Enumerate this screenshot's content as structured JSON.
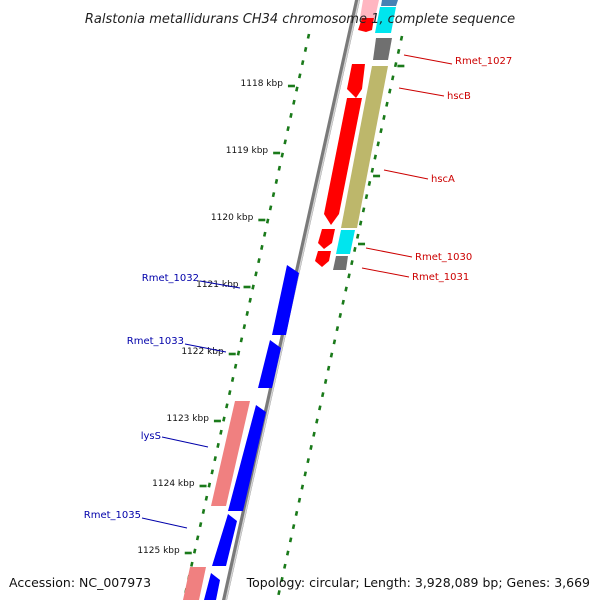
{
  "map": {
    "title": "Ralstonia metallidurans CH34 chromosome 1, complete sequence",
    "accession": "Accession: NC_007973",
    "topology": "Topology: circular; Length: 3,928,089 bp; Genes: 3,669"
  },
  "colors": {
    "backbone": "#7a7a7a",
    "backbone_edge": "#cfcfcf",
    "tick": "#1a7a1a",
    "gene_forward": "#ff0000",
    "gene_reverse": "#0000ff",
    "label_forward": "#cc0000",
    "label_reverse": "#0000aa",
    "cds_khaki": "#bdb76b",
    "cds_cyan": "#00e5ee",
    "cds_gray": "#707070",
    "cds_salmon": "#f08080",
    "cds_steel": "#4682b4",
    "cds_pink": "#ffb6c1"
  },
  "kbp_labels": [
    "1118 kbp",
    "1119 kbp",
    "1120 kbp",
    "1121 kbp",
    "1122 kbp",
    "1123 kbp",
    "1124 kbp",
    "1125 kbp"
  ],
  "genes_forward": [
    {
      "name": "Rmet_1027"
    },
    {
      "name": "hscB"
    },
    {
      "name": "hscA"
    },
    {
      "name": "Rmet_1030"
    },
    {
      "name": "Rmet_1031"
    }
  ],
  "genes_reverse": [
    {
      "name": "Rmet_1032"
    },
    {
      "name": "Rmet_1033"
    },
    {
      "name": "lysS"
    },
    {
      "name": "Rmet_1035"
    }
  ]
}
